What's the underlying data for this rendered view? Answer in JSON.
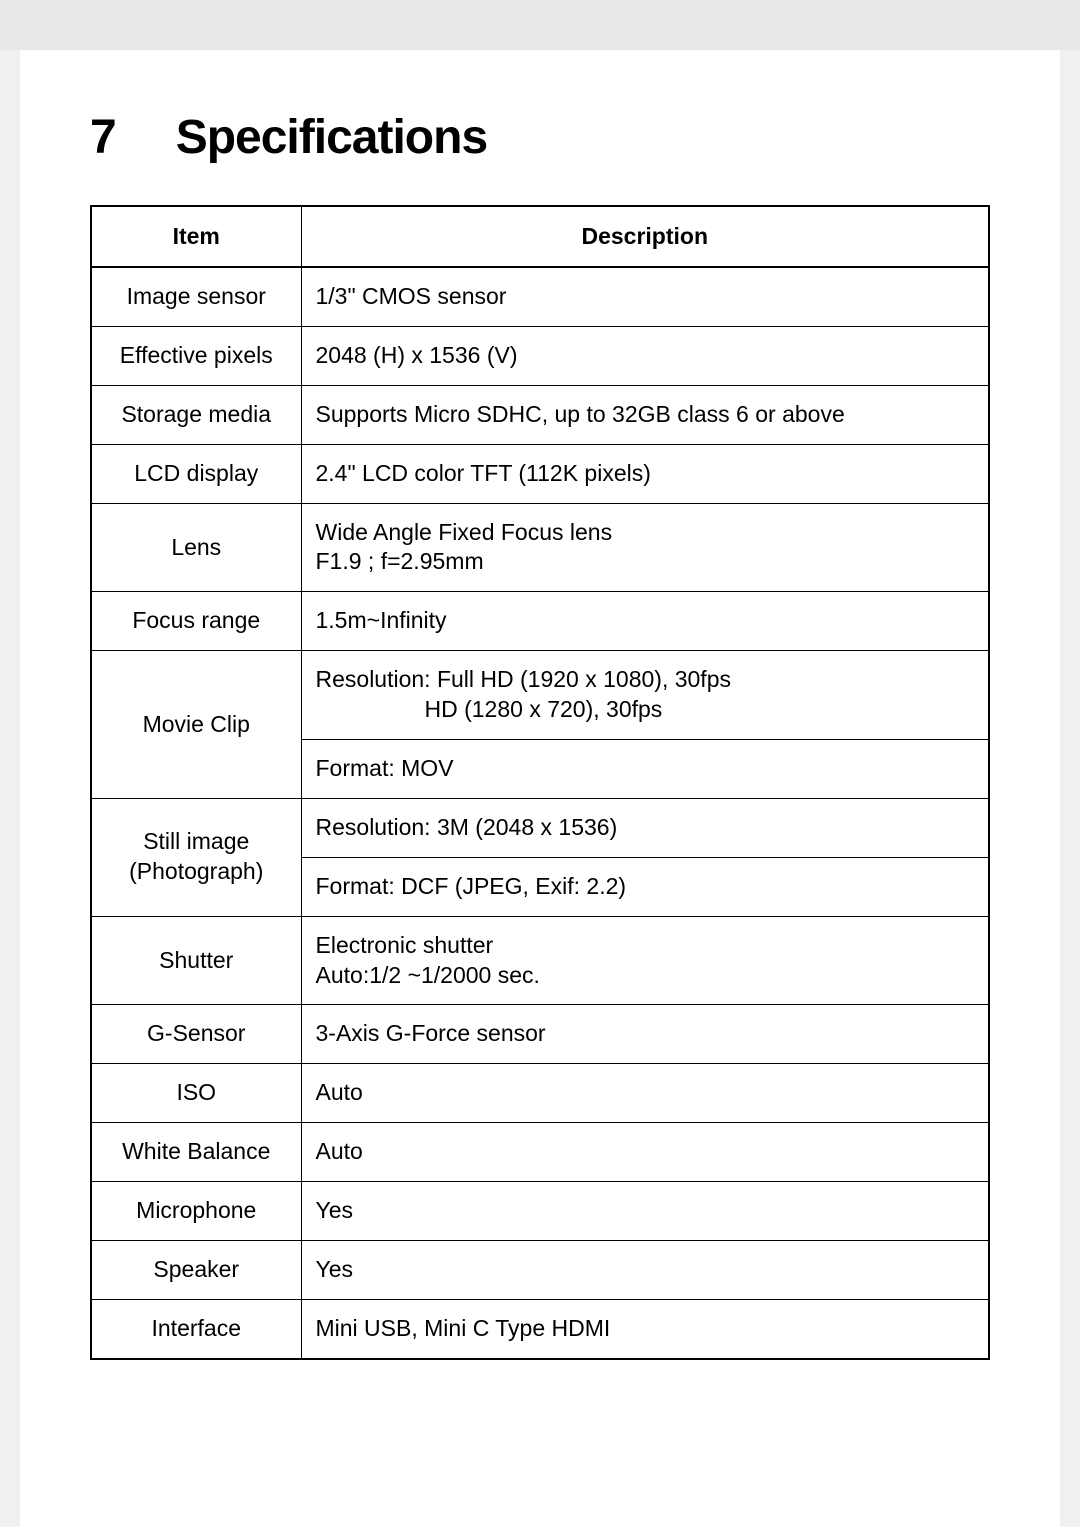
{
  "chapter": {
    "number": "7",
    "title": "Specifications"
  },
  "table": {
    "headers": {
      "item": "Item",
      "description": "Description"
    },
    "rows": {
      "image_sensor": {
        "item": "Image sensor",
        "desc": "1/3\" CMOS sensor"
      },
      "effective_pixels": {
        "item": "Effective pixels",
        "desc": "2048 (H) x 1536 (V)"
      },
      "storage_media": {
        "item": "Storage media",
        "desc": "Supports Micro SDHC, up to 32GB class 6 or above"
      },
      "lcd_display": {
        "item": "LCD display",
        "desc": "2.4\" LCD color TFT (112K pixels)"
      },
      "lens": {
        "item": "Lens",
        "desc_l1": "Wide Angle Fixed Focus lens",
        "desc_l2": "F1.9 ; f=2.95mm"
      },
      "focus_range": {
        "item": "Focus range",
        "desc": "1.5m~Infinity"
      },
      "movie_clip": {
        "item": "Movie Clip",
        "desc1_l1": "Resolution: Full HD (1920 x 1080), 30fps",
        "desc1_l2": "HD (1280 x 720), 30fps",
        "desc2": "Format: MOV"
      },
      "still_image": {
        "item_l1": "Still image",
        "item_l2": "(Photograph)",
        "desc1": "Resolution: 3M (2048 x 1536)",
        "desc2": "Format: DCF (JPEG, Exif: 2.2)"
      },
      "shutter": {
        "item": "Shutter",
        "desc_l1": "Electronic shutter",
        "desc_l2": "Auto:1/2 ~1/2000 sec."
      },
      "g_sensor": {
        "item": "G-Sensor",
        "desc": "3-Axis G-Force sensor"
      },
      "iso": {
        "item": "ISO",
        "desc": "Auto"
      },
      "white_balance": {
        "item": "White Balance",
        "desc": "Auto"
      },
      "microphone": {
        "item": "Microphone",
        "desc": "Yes"
      },
      "speaker": {
        "item": "Speaker",
        "desc": "Yes"
      },
      "interface": {
        "item": "Interface",
        "desc": "Mini USB, Mini C Type HDMI"
      }
    }
  }
}
